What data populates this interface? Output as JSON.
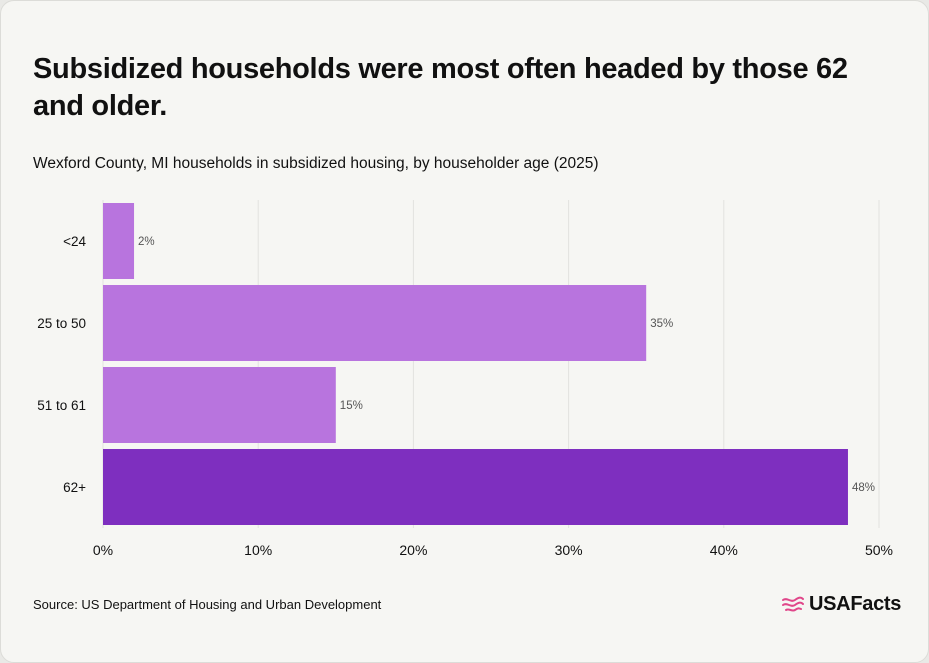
{
  "title": "Subsidized households were most often headed by those 62 and older.",
  "subtitle": "Wexford County, MI households in subsidized housing, by householder age (2025)",
  "source": "Source: US Department of Housing and Urban Development",
  "brand": "USAFacts",
  "colors": {
    "bar": "#b874de",
    "highlight": "#7e2fbf",
    "grid": "#e2e2df",
    "logo": "#e0478a"
  },
  "chart_data": {
    "type": "bar",
    "orientation": "horizontal",
    "categories": [
      "<24",
      "25 to 50",
      "51 to 61",
      "62+"
    ],
    "values": [
      2,
      35,
      15,
      48
    ],
    "data_labels": [
      "2%",
      "35%",
      "15%",
      "48%"
    ],
    "highlight_index": 3,
    "xlim": [
      0,
      50
    ],
    "xticks": [
      0,
      10,
      20,
      30,
      40,
      50
    ],
    "xtick_labels": [
      "0%",
      "10%",
      "20%",
      "30%",
      "40%",
      "50%"
    ],
    "grid": "vertical"
  }
}
